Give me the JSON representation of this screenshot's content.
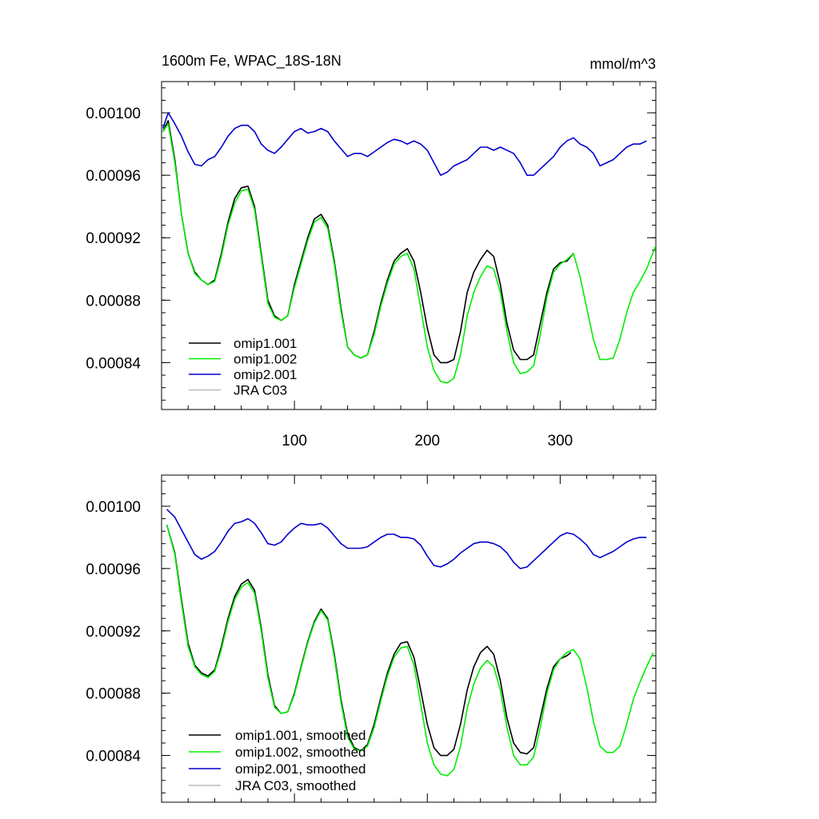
{
  "title_left": "1600m Fe, WPAC_18S-18N",
  "title_right": "mmol/m^3",
  "chart_data": [
    {
      "type": "line",
      "panel": "raw",
      "xlim": [
        0,
        372
      ],
      "ylim": [
        0.00081,
        0.00102
      ],
      "yticks": [
        0.00084,
        0.00088,
        0.00092,
        0.00096,
        0.001
      ],
      "ytick_labels": [
        "0.00084",
        "0.00088",
        "0.00092",
        "0.00096",
        "0.00100"
      ],
      "xticks": [
        100,
        200,
        300
      ],
      "xtick_labels": [
        "100",
        "200",
        "300"
      ],
      "legend_position": "lower-left",
      "series": [
        {
          "name": "omip1.001",
          "color": "#000000",
          "x": [
            1,
            5,
            10,
            15,
            20,
            25,
            30,
            35,
            40,
            45,
            50,
            55,
            60,
            65,
            70,
            75,
            80,
            85,
            90,
            95,
            100,
            105,
            110,
            115,
            120,
            125,
            130,
            135,
            140,
            145,
            150,
            155,
            160,
            165,
            170,
            175,
            180,
            185,
            190,
            195,
            200,
            205,
            210,
            215,
            220,
            225,
            230,
            235,
            240,
            245,
            250,
            255,
            260,
            265,
            270,
            275,
            280,
            285,
            290,
            295,
            300,
            305,
            310
          ],
          "y": [
            0.000988,
            0.000995,
            0.00097,
            0.000935,
            0.00091,
            0.000898,
            0.000893,
            0.00089,
            0.000893,
            0.00091,
            0.00093,
            0.000945,
            0.000952,
            0.000953,
            0.00094,
            0.00091,
            0.00088,
            0.00087,
            0.000867,
            0.00087,
            0.00089,
            0.000905,
            0.00092,
            0.000932,
            0.000935,
            0.000928,
            0.000905,
            0.000875,
            0.00085,
            0.000845,
            0.000843,
            0.000845,
            0.00086,
            0.000878,
            0.000893,
            0.000905,
            0.00091,
            0.000913,
            0.000905,
            0.000885,
            0.000862,
            0.000845,
            0.00084,
            0.00084,
            0.000842,
            0.00086,
            0.000885,
            0.000898,
            0.000906,
            0.000912,
            0.000908,
            0.00089,
            0.000865,
            0.000848,
            0.000842,
            0.000842,
            0.000845,
            0.000865,
            0.000885,
            0.0009,
            0.000904,
            0.000905,
            0.00091
          ]
        },
        {
          "name": "omip1.002",
          "color": "#00ee00",
          "x": [
            1,
            5,
            10,
            15,
            20,
            25,
            30,
            35,
            40,
            45,
            50,
            55,
            60,
            65,
            70,
            75,
            80,
            85,
            90,
            95,
            100,
            105,
            110,
            115,
            120,
            125,
            130,
            135,
            140,
            145,
            150,
            155,
            160,
            165,
            170,
            175,
            180,
            185,
            190,
            195,
            200,
            205,
            210,
            215,
            220,
            225,
            230,
            235,
            240,
            245,
            250,
            255,
            260,
            265,
            270,
            275,
            280,
            285,
            290,
            295,
            300,
            305,
            310,
            315,
            320,
            325,
            330,
            335,
            340,
            345,
            350,
            355,
            360,
            365,
            372
          ],
          "y": [
            0.000988,
            0.000993,
            0.000968,
            0.000935,
            0.00091,
            0.000897,
            0.000893,
            0.00089,
            0.000892,
            0.000908,
            0.000928,
            0.000942,
            0.00095,
            0.000951,
            0.000938,
            0.000908,
            0.000878,
            0.000869,
            0.000867,
            0.00087,
            0.000888,
            0.000903,
            0.000918,
            0.00093,
            0.000933,
            0.000926,
            0.000903,
            0.000873,
            0.00085,
            0.000845,
            0.000843,
            0.000845,
            0.000858,
            0.000876,
            0.000891,
            0.000903,
            0.000908,
            0.00091,
            0.0009,
            0.000875,
            0.00085,
            0.000835,
            0.000828,
            0.000827,
            0.00083,
            0.000845,
            0.00087,
            0.000885,
            0.000895,
            0.000902,
            0.0009,
            0.000885,
            0.00086,
            0.00084,
            0.000833,
            0.000834,
            0.000838,
            0.000858,
            0.000882,
            0.000898,
            0.000903,
            0.000906,
            0.00091,
            0.000895,
            0.000875,
            0.000855,
            0.000842,
            0.000842,
            0.000843,
            0.000855,
            0.000872,
            0.000885,
            0.000892,
            0.0009,
            0.000915
          ]
        },
        {
          "name": "omip2.001",
          "color": "#0000cc",
          "x": [
            1,
            5,
            10,
            15,
            20,
            25,
            30,
            35,
            40,
            45,
            50,
            55,
            60,
            65,
            70,
            75,
            80,
            85,
            90,
            95,
            100,
            105,
            110,
            115,
            120,
            125,
            130,
            135,
            140,
            145,
            150,
            155,
            160,
            165,
            170,
            175,
            180,
            185,
            190,
            195,
            200,
            205,
            210,
            215,
            220,
            225,
            230,
            235,
            240,
            245,
            250,
            255,
            260,
            265,
            270,
            275,
            280,
            285,
            290,
            295,
            300,
            305,
            310,
            315,
            320,
            325,
            330,
            335,
            340,
            345,
            350,
            355,
            360,
            365
          ],
          "y": [
            0.00099,
            0.001,
            0.000993,
            0.000985,
            0.000975,
            0.000967,
            0.000966,
            0.00097,
            0.000972,
            0.000978,
            0.000985,
            0.00099,
            0.000992,
            0.000992,
            0.000988,
            0.00098,
            0.000976,
            0.000974,
            0.000978,
            0.000983,
            0.000988,
            0.00099,
            0.000987,
            0.000988,
            0.00099,
            0.000988,
            0.000982,
            0.000977,
            0.000972,
            0.000974,
            0.000974,
            0.000972,
            0.000975,
            0.000978,
            0.000981,
            0.000983,
            0.000982,
            0.00098,
            0.000982,
            0.00098,
            0.000976,
            0.000968,
            0.00096,
            0.000962,
            0.000966,
            0.000968,
            0.00097,
            0.000974,
            0.000978,
            0.000978,
            0.000976,
            0.000978,
            0.000976,
            0.000974,
            0.000968,
            0.00096,
            0.00096,
            0.000964,
            0.000968,
            0.000972,
            0.000978,
            0.000982,
            0.000984,
            0.00098,
            0.000978,
            0.000974,
            0.000966,
            0.000968,
            0.00097,
            0.000974,
            0.000978,
            0.00098,
            0.00098,
            0.000982
          ]
        },
        {
          "name": "JRA C03",
          "color": "#bbbbbb",
          "x": [],
          "y": []
        }
      ]
    },
    {
      "type": "line",
      "panel": "smoothed",
      "xlim": [
        0,
        372
      ],
      "ylim": [
        0.00081,
        0.00102
      ],
      "yticks": [
        0.00084,
        0.00088,
        0.00092,
        0.00096,
        0.001
      ],
      "ytick_labels": [
        "0.00084",
        "0.00088",
        "0.00092",
        "0.00096",
        "0.00100"
      ],
      "xticks": [
        100,
        200,
        300
      ],
      "legend_position": "lower-left",
      "series": [
        {
          "name": "omip1.001, smoothed",
          "color": "#000000",
          "x": [
            4,
            10,
            15,
            20,
            25,
            30,
            35,
            40,
            45,
            50,
            55,
            60,
            65,
            70,
            75,
            80,
            85,
            90,
            95,
            100,
            105,
            110,
            115,
            120,
            125,
            130,
            135,
            140,
            145,
            150,
            155,
            160,
            165,
            170,
            175,
            180,
            185,
            190,
            195,
            200,
            205,
            210,
            215,
            220,
            225,
            230,
            235,
            240,
            245,
            250,
            255,
            260,
            265,
            270,
            275,
            280,
            285,
            290,
            295,
            300,
            305,
            308
          ],
          "y": [
            0.000988,
            0.00097,
            0.00094,
            0.000912,
            0.000898,
            0.000893,
            0.000891,
            0.000895,
            0.00091,
            0.000928,
            0.000942,
            0.00095,
            0.000953,
            0.000946,
            0.000922,
            0.000892,
            0.000872,
            0.000867,
            0.000868,
            0.00088,
            0.000897,
            0.000913,
            0.000926,
            0.000934,
            0.000928,
            0.000905,
            0.000876,
            0.000854,
            0.000845,
            0.000843,
            0.000847,
            0.00086,
            0.000877,
            0.000893,
            0.000905,
            0.000912,
            0.000913,
            0.000903,
            0.000882,
            0.00086,
            0.000845,
            0.00084,
            0.00084,
            0.000844,
            0.00086,
            0.000882,
            0.000897,
            0.000906,
            0.00091,
            0.000905,
            0.000888,
            0.000864,
            0.000848,
            0.000842,
            0.000841,
            0.000845,
            0.000864,
            0.000883,
            0.000897,
            0.000902,
            0.000904,
            0.000906
          ]
        },
        {
          "name": "omip1.002, smoothed",
          "color": "#00ee00",
          "x": [
            4,
            10,
            15,
            20,
            25,
            30,
            35,
            40,
            45,
            50,
            55,
            60,
            65,
            70,
            75,
            80,
            85,
            90,
            95,
            100,
            105,
            110,
            115,
            120,
            125,
            130,
            135,
            140,
            145,
            150,
            155,
            160,
            165,
            170,
            175,
            180,
            185,
            190,
            195,
            200,
            205,
            210,
            215,
            220,
            225,
            230,
            235,
            240,
            245,
            250,
            255,
            260,
            265,
            270,
            275,
            280,
            285,
            290,
            295,
            300,
            305,
            310,
            315,
            320,
            325,
            330,
            335,
            340,
            345,
            350,
            355,
            360,
            365,
            370
          ],
          "y": [
            0.000988,
            0.000969,
            0.000938,
            0.00091,
            0.000897,
            0.000892,
            0.00089,
            0.000894,
            0.000908,
            0.000926,
            0.00094,
            0.000948,
            0.000951,
            0.000944,
            0.00092,
            0.00089,
            0.000871,
            0.000867,
            0.000868,
            0.000879,
            0.000896,
            0.000912,
            0.000925,
            0.000933,
            0.000927,
            0.000903,
            0.000874,
            0.000852,
            0.000844,
            0.000843,
            0.000846,
            0.000858,
            0.000875,
            0.000891,
            0.000903,
            0.000909,
            0.00091,
            0.000898,
            0.000873,
            0.000848,
            0.000834,
            0.000828,
            0.000827,
            0.000831,
            0.000846,
            0.00087,
            0.000886,
            0.000896,
            0.000901,
            0.000897,
            0.000882,
            0.000858,
            0.00084,
            0.000834,
            0.000834,
            0.000839,
            0.000858,
            0.00088,
            0.000895,
            0.000902,
            0.000906,
            0.000908,
            0.000902,
            0.000884,
            0.000862,
            0.000846,
            0.000842,
            0.000842,
            0.000846,
            0.00086,
            0.000876,
            0.000887,
            0.000897,
            0.000906
          ]
        },
        {
          "name": "omip2.001, smoothed",
          "color": "#0000cc",
          "x": [
            4,
            10,
            15,
            20,
            25,
            30,
            35,
            40,
            45,
            50,
            55,
            60,
            65,
            70,
            75,
            80,
            85,
            90,
            95,
            100,
            105,
            110,
            115,
            120,
            125,
            130,
            135,
            140,
            145,
            150,
            155,
            160,
            165,
            170,
            175,
            180,
            185,
            190,
            195,
            200,
            205,
            210,
            215,
            220,
            225,
            230,
            235,
            240,
            245,
            250,
            255,
            260,
            265,
            270,
            275,
            280,
            285,
            290,
            295,
            300,
            305,
            310,
            315,
            320,
            325,
            330,
            335,
            340,
            345,
            350,
            355,
            360,
            365
          ],
          "y": [
            0.000998,
            0.000993,
            0.000985,
            0.000977,
            0.000969,
            0.000966,
            0.000968,
            0.000971,
            0.000977,
            0.000984,
            0.000989,
            0.00099,
            0.000992,
            0.000989,
            0.000983,
            0.000976,
            0.000975,
            0.000977,
            0.000982,
            0.000986,
            0.000989,
            0.000988,
            0.000988,
            0.000989,
            0.000986,
            0.000981,
            0.000976,
            0.000973,
            0.000973,
            0.000973,
            0.000974,
            0.000977,
            0.00098,
            0.000982,
            0.000982,
            0.00098,
            0.00098,
            0.000979,
            0.000975,
            0.000968,
            0.000962,
            0.000961,
            0.000963,
            0.000966,
            0.00097,
            0.000973,
            0.000976,
            0.000977,
            0.000977,
            0.000976,
            0.000974,
            0.00097,
            0.000964,
            0.00096,
            0.000961,
            0.000965,
            0.000969,
            0.000973,
            0.000977,
            0.000981,
            0.000983,
            0.000982,
            0.000979,
            0.000975,
            0.000969,
            0.000967,
            0.000969,
            0.000971,
            0.000974,
            0.000977,
            0.000979,
            0.00098,
            0.00098
          ]
        },
        {
          "name": "JRA C03, smoothed",
          "color": "#bbbbbb",
          "x": [],
          "y": []
        }
      ]
    }
  ]
}
